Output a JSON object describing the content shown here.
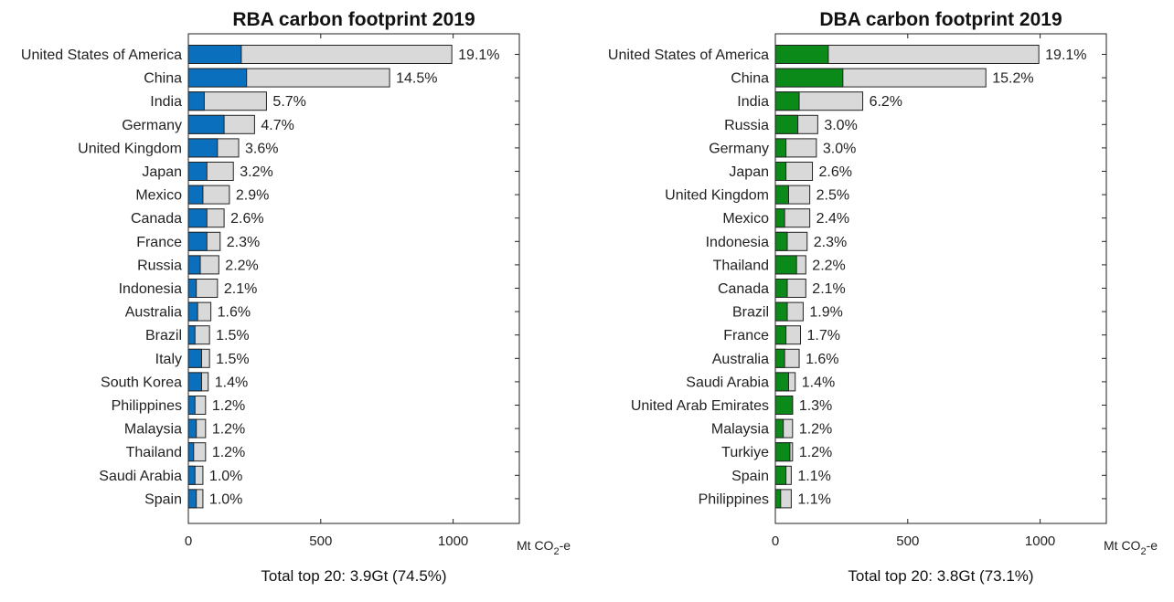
{
  "chart_data": [
    {
      "type": "bar",
      "orientation": "horizontal",
      "title": "RBA carbon footprint 2019",
      "unit_label": "Mt CO2-e",
      "unit_main": "Mt CO",
      "unit_sub": "2",
      "unit_tail": "-e",
      "total_text": "Total top 20: 3.9Gt (74.5%)",
      "xlim": [
        0,
        1250
      ],
      "xticks": [
        0,
        500,
        1000
      ],
      "highlight_color": "#0a6fbd",
      "total_color": "#d9d9d9",
      "categories": [
        "United States of America",
        "China",
        "India",
        "Germany",
        "United Kingdom",
        "Japan",
        "Mexico",
        "Canada",
        "France",
        "Russia",
        "Indonesia",
        "Australia",
        "Brazil",
        "Italy",
        "South Korea",
        "Philippines",
        "Malaysia",
        "Thailand",
        "Saudi Arabia",
        "Spain"
      ],
      "series": [
        {
          "values": [
            995,
            760,
            295,
            250,
            190,
            170,
            155,
            135,
            120,
            115,
            110,
            85,
            80,
            80,
            75,
            65,
            65,
            65,
            55,
            55
          ]
        },
        {
          "values": [
            200,
            220,
            60,
            135,
            110,
            70,
            55,
            70,
            70,
            45,
            30,
            35,
            25,
            50,
            50,
            25,
            30,
            20,
            25,
            30
          ]
        }
      ],
      "data_labels": [
        "19.1%",
        "14.5%",
        "5.7%",
        "4.7%",
        "3.6%",
        "3.2%",
        "2.9%",
        "2.6%",
        "2.3%",
        "2.2%",
        "2.1%",
        "1.6%",
        "1.5%",
        "1.5%",
        "1.4%",
        "1.2%",
        "1.2%",
        "1.2%",
        "1.0%",
        "1.0%"
      ]
    },
    {
      "type": "bar",
      "orientation": "horizontal",
      "title": "DBA carbon footprint 2019",
      "unit_label": "Mt CO2-e",
      "unit_main": "Mt CO",
      "unit_sub": "2",
      "unit_tail": "-e",
      "total_text": "Total top 20: 3.8Gt (73.1%)",
      "xlim": [
        0,
        1250
      ],
      "xticks": [
        0,
        500,
        1000
      ],
      "highlight_color": "#0b8a1a",
      "total_color": "#d9d9d9",
      "categories": [
        "United States of America",
        "China",
        "India",
        "Russia",
        "Germany",
        "Japan",
        "United Kingdom",
        "Mexico",
        "Indonesia",
        "Thailand",
        "Canada",
        "Brazil",
        "France",
        "Australia",
        "Saudi Arabia",
        "United Arab Emirates",
        "Malaysia",
        "Turkiye",
        "Spain",
        "Philippines"
      ],
      "series": [
        {
          "values": [
            995,
            795,
            330,
            160,
            155,
            140,
            130,
            130,
            120,
            115,
            115,
            105,
            95,
            90,
            75,
            65,
            65,
            65,
            60,
            60
          ]
        },
        {
          "values": [
            200,
            255,
            90,
            85,
            40,
            40,
            50,
            35,
            45,
            80,
            45,
            45,
            40,
            35,
            50,
            65,
            30,
            55,
            40,
            20
          ]
        }
      ],
      "data_labels": [
        "19.1%",
        "15.2%",
        "6.2%",
        "3.0%",
        "3.0%",
        "2.6%",
        "2.5%",
        "2.4%",
        "2.3%",
        "2.2%",
        "2.1%",
        "1.9%",
        "1.7%",
        "1.6%",
        "1.4%",
        "1.3%",
        "1.2%",
        "1.2%",
        "1.1%",
        "1.1%"
      ]
    }
  ]
}
